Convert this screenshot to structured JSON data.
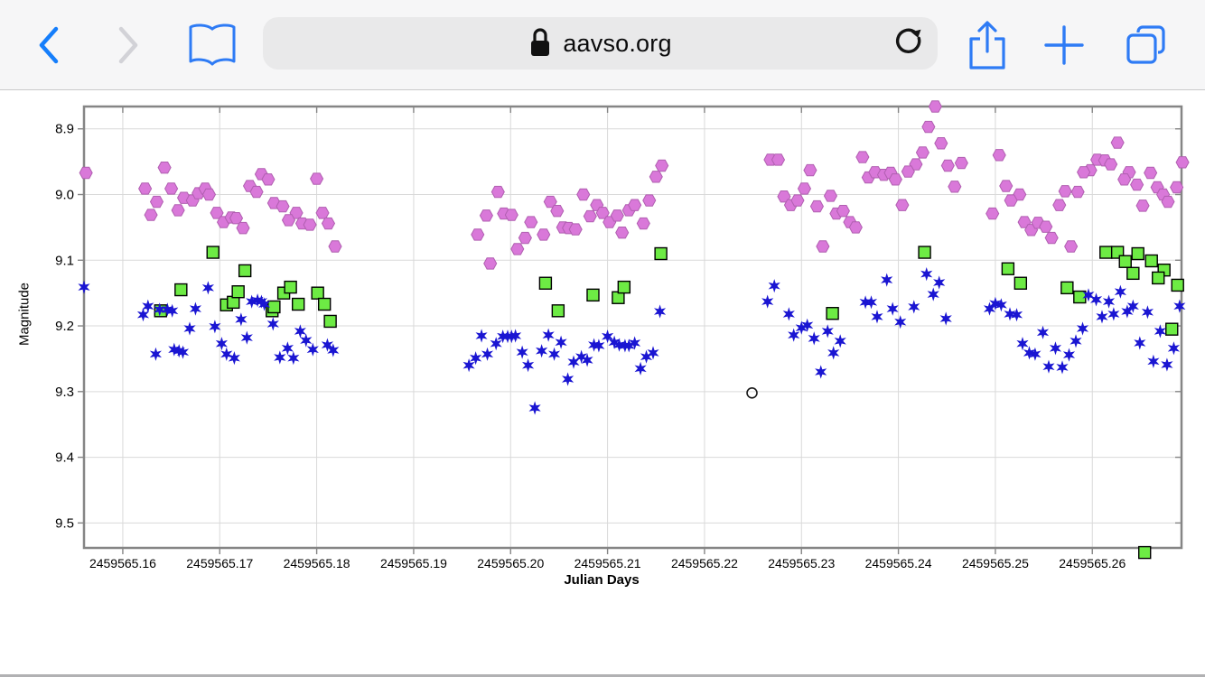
{
  "browser": {
    "url_text": "aavso.org",
    "accent_color": "#157efb",
    "icons": [
      "back",
      "forward",
      "bookmarks",
      "lock",
      "reload",
      "share",
      "new-tab",
      "tabs"
    ]
  },
  "chart_data": {
    "type": "scatter",
    "title": "",
    "xlabel": "Julian Days",
    "ylabel": "Magnitude",
    "x_unit": "JD - 2459565",
    "grid": true,
    "legend": "none",
    "y_inverted": true,
    "xlim": [
      0.156,
      0.2692
    ],
    "ylim": [
      8.866,
      9.538
    ],
    "x_ticks": [
      0.16,
      0.17,
      0.18,
      0.19,
      0.2,
      0.21,
      0.22,
      0.23,
      0.24,
      0.25,
      0.26
    ],
    "x_tick_labels": [
      "2459565.16",
      "2459565.17",
      "2459565.18",
      "2459565.19",
      "2459565.20",
      "2459565.21",
      "2459565.22",
      "2459565.23",
      "2459565.24",
      "2459565.25",
      "2459565.26"
    ],
    "y_ticks": [
      8.9,
      9.0,
      9.1,
      9.2,
      9.3,
      9.4,
      9.5
    ],
    "y_tick_labels": [
      "8.9",
      "9.0",
      "9.1",
      "9.2",
      "9.3",
      "9.4",
      "9.5"
    ],
    "colors": {
      "grid": "#d9d9d9",
      "frame": "#858585",
      "violet": "#d978d9",
      "green": "#6deb44",
      "blue": "#1a15d2"
    },
    "series": [
      {
        "id": "violet-hexagons",
        "marker": "hexagon",
        "fill": "#d978d9",
        "edge": "#b05fb0",
        "points": [
          [
            0.1562,
            8.967
          ],
          [
            0.1643,
            8.959
          ],
          [
            0.1623,
            8.991
          ],
          [
            0.165,
            8.991
          ],
          [
            0.1635,
            9.011
          ],
          [
            0.1629,
            9.031
          ],
          [
            0.1657,
            9.024
          ],
          [
            0.1663,
            9.005
          ],
          [
            0.1672,
            9.009
          ],
          [
            0.1678,
            8.998
          ],
          [
            0.1685,
            8.991
          ],
          [
            0.1689,
            9.0
          ],
          [
            0.1697,
            9.028
          ],
          [
            0.1704,
            9.042
          ],
          [
            0.1712,
            9.035
          ],
          [
            0.1717,
            9.036
          ],
          [
            0.1724,
            9.051
          ],
          [
            0.1731,
            8.987
          ],
          [
            0.1738,
            8.996
          ],
          [
            0.1743,
            8.969
          ],
          [
            0.175,
            8.977
          ],
          [
            0.1756,
            9.013
          ],
          [
            0.1765,
            9.018
          ],
          [
            0.18,
            8.976
          ],
          [
            0.1779,
            9.028
          ],
          [
            0.1771,
            9.039
          ],
          [
            0.1785,
            9.044
          ],
          [
            0.1793,
            9.046
          ],
          [
            0.1806,
            9.028
          ],
          [
            0.1812,
            9.044
          ],
          [
            0.1819,
            9.079
          ],
          [
            0.1966,
            9.061
          ],
          [
            0.1987,
            8.996
          ],
          [
            0.1975,
            9.032
          ],
          [
            0.1993,
            9.029
          ],
          [
            0.2001,
            9.031
          ],
          [
            0.1979,
            9.105
          ],
          [
            0.2007,
            9.083
          ],
          [
            0.2015,
            9.066
          ],
          [
            0.2021,
            9.042
          ],
          [
            0.2034,
            9.061
          ],
          [
            0.2041,
            9.011
          ],
          [
            0.2048,
            9.025
          ],
          [
            0.2054,
            9.05
          ],
          [
            0.206,
            9.051
          ],
          [
            0.2067,
            9.053
          ],
          [
            0.2075,
            9.0
          ],
          [
            0.2082,
            9.033
          ],
          [
            0.2089,
            9.016
          ],
          [
            0.2095,
            9.028
          ],
          [
            0.2102,
            9.042
          ],
          [
            0.211,
            9.032
          ],
          [
            0.2115,
            9.058
          ],
          [
            0.2122,
            9.024
          ],
          [
            0.2128,
            9.016
          ],
          [
            0.2137,
            9.044
          ],
          [
            0.2143,
            9.009
          ],
          [
            0.215,
            8.973
          ],
          [
            0.2156,
            8.956
          ],
          [
            0.2268,
            8.947
          ],
          [
            0.2276,
            8.947
          ],
          [
            0.2309,
            8.963
          ],
          [
            0.2363,
            8.943
          ],
          [
            0.2369,
            8.974
          ],
          [
            0.2376,
            8.966
          ],
          [
            0.2303,
            8.991
          ],
          [
            0.2282,
            9.003
          ],
          [
            0.2289,
            9.016
          ],
          [
            0.2296,
            9.009
          ],
          [
            0.2316,
            9.018
          ],
          [
            0.233,
            9.002
          ],
          [
            0.2336,
            9.029
          ],
          [
            0.2343,
            9.025
          ],
          [
            0.235,
            9.042
          ],
          [
            0.2356,
            9.05
          ],
          [
            0.2322,
            9.079
          ],
          [
            0.2438,
            8.866
          ],
          [
            0.2431,
            8.897
          ],
          [
            0.2444,
            8.922
          ],
          [
            0.2425,
            8.936
          ],
          [
            0.2451,
            8.956
          ],
          [
            0.2465,
            8.952
          ],
          [
            0.2418,
            8.954
          ],
          [
            0.241,
            8.965
          ],
          [
            0.2385,
            8.97
          ],
          [
            0.2392,
            8.967
          ],
          [
            0.2397,
            8.977
          ],
          [
            0.2458,
            8.988
          ],
          [
            0.2404,
            9.016
          ],
          [
            0.2504,
            8.94
          ],
          [
            0.2511,
            8.987
          ],
          [
            0.2525,
            9.0
          ],
          [
            0.2516,
            9.009
          ],
          [
            0.2497,
            9.029
          ],
          [
            0.253,
            9.042
          ],
          [
            0.2537,
            9.054
          ],
          [
            0.2544,
            9.043
          ],
          [
            0.2552,
            9.049
          ],
          [
            0.2558,
            9.066
          ],
          [
            0.2626,
            8.921
          ],
          [
            0.2605,
            8.947
          ],
          [
            0.2613,
            8.948
          ],
          [
            0.2619,
            8.954
          ],
          [
            0.2598,
            8.963
          ],
          [
            0.2591,
            8.966
          ],
          [
            0.2638,
            8.966
          ],
          [
            0.266,
            8.967
          ],
          [
            0.2633,
            8.977
          ],
          [
            0.2646,
            8.985
          ],
          [
            0.2572,
            8.995
          ],
          [
            0.2585,
            8.996
          ],
          [
            0.2667,
            8.989
          ],
          [
            0.2693,
            8.951
          ],
          [
            0.2687,
            8.989
          ],
          [
            0.2673,
            9.0
          ],
          [
            0.2566,
            9.016
          ],
          [
            0.2678,
            9.011
          ],
          [
            0.2652,
            9.017
          ],
          [
            0.2578,
            9.079
          ]
        ]
      },
      {
        "id": "green-squares",
        "marker": "square",
        "fill": "#6deb44",
        "edge": "#000000",
        "points": [
          [
            0.1693,
            9.088
          ],
          [
            0.1726,
            9.116
          ],
          [
            0.166,
            9.145
          ],
          [
            0.1639,
            9.177
          ],
          [
            0.1707,
            9.168
          ],
          [
            0.1714,
            9.164
          ],
          [
            0.1719,
            9.148
          ],
          [
            0.1754,
            9.177
          ],
          [
            0.1766,
            9.15
          ],
          [
            0.1773,
            9.141
          ],
          [
            0.1756,
            9.171
          ],
          [
            0.1781,
            9.167
          ],
          [
            0.1801,
            9.15
          ],
          [
            0.1808,
            9.167
          ],
          [
            0.1814,
            9.193
          ],
          [
            0.2036,
            9.135
          ],
          [
            0.2049,
            9.177
          ],
          [
            0.2085,
            9.153
          ],
          [
            0.2111,
            9.157
          ],
          [
            0.2117,
            9.141
          ],
          [
            0.2155,
            9.09
          ],
          [
            0.2332,
            9.181
          ],
          [
            0.2427,
            9.088
          ],
          [
            0.2513,
            9.113
          ],
          [
            0.2526,
            9.135
          ],
          [
            0.2614,
            9.088
          ],
          [
            0.2626,
            9.088
          ],
          [
            0.2647,
            9.09
          ],
          [
            0.2634,
            9.102
          ],
          [
            0.2661,
            9.101
          ],
          [
            0.2642,
            9.12
          ],
          [
            0.2674,
            9.115
          ],
          [
            0.2668,
            9.127
          ],
          [
            0.2688,
            9.138
          ],
          [
            0.2574,
            9.142
          ],
          [
            0.2587,
            9.156
          ],
          [
            0.2682,
            9.205
          ],
          [
            0.2654,
            9.545
          ]
        ]
      },
      {
        "id": "blue-stars",
        "marker": "star6",
        "fill": "#1a15d2",
        "edge": "none",
        "points": [
          [
            0.156,
            9.141
          ],
          [
            0.1626,
            9.17
          ],
          [
            0.1621,
            9.183
          ],
          [
            0.1638,
            9.175
          ],
          [
            0.1646,
            9.175
          ],
          [
            0.1651,
            9.177
          ],
          [
            0.1675,
            9.174
          ],
          [
            0.1688,
            9.142
          ],
          [
            0.1669,
            9.204
          ],
          [
            0.1695,
            9.201
          ],
          [
            0.1702,
            9.227
          ],
          [
            0.1707,
            9.243
          ],
          [
            0.1715,
            9.249
          ],
          [
            0.1722,
            9.19
          ],
          [
            0.1728,
            9.218
          ],
          [
            0.1733,
            9.163
          ],
          [
            0.1739,
            9.161
          ],
          [
            0.1743,
            9.163
          ],
          [
            0.1746,
            9.167
          ],
          [
            0.1755,
            9.197
          ],
          [
            0.1634,
            9.243
          ],
          [
            0.1653,
            9.236
          ],
          [
            0.1658,
            9.238
          ],
          [
            0.1662,
            9.24
          ],
          [
            0.1762,
            9.248
          ],
          [
            0.1783,
            9.208
          ],
          [
            0.1789,
            9.222
          ],
          [
            0.177,
            9.234
          ],
          [
            0.1796,
            9.236
          ],
          [
            0.1776,
            9.249
          ],
          [
            0.1811,
            9.229
          ],
          [
            0.1817,
            9.237
          ],
          [
            0.1957,
            9.26
          ],
          [
            0.1964,
            9.249
          ],
          [
            0.197,
            9.215
          ],
          [
            0.1976,
            9.243
          ],
          [
            0.1985,
            9.227
          ],
          [
            0.1992,
            9.216
          ],
          [
            0.1997,
            9.216
          ],
          [
            0.2001,
            9.216
          ],
          [
            0.2005,
            9.215
          ],
          [
            0.2012,
            9.24
          ],
          [
            0.2018,
            9.26
          ],
          [
            0.2025,
            9.325
          ],
          [
            0.2032,
            9.238
          ],
          [
            0.2039,
            9.214
          ],
          [
            0.2045,
            9.243
          ],
          [
            0.2052,
            9.225
          ],
          [
            0.2059,
            9.281
          ],
          [
            0.2065,
            9.255
          ],
          [
            0.2073,
            9.247
          ],
          [
            0.2079,
            9.252
          ],
          [
            0.2086,
            9.229
          ],
          [
            0.2091,
            9.23
          ],
          [
            0.21,
            9.216
          ],
          [
            0.2107,
            9.225
          ],
          [
            0.2112,
            9.229
          ],
          [
            0.2118,
            9.23
          ],
          [
            0.2122,
            9.23
          ],
          [
            0.2128,
            9.226
          ],
          [
            0.2134,
            9.265
          ],
          [
            0.214,
            9.247
          ],
          [
            0.2147,
            9.241
          ],
          [
            0.2154,
            9.178
          ],
          [
            0.2272,
            9.139
          ],
          [
            0.2265,
            9.163
          ],
          [
            0.2287,
            9.182
          ],
          [
            0.2292,
            9.214
          ],
          [
            0.23,
            9.203
          ],
          [
            0.2306,
            9.199
          ],
          [
            0.2313,
            9.219
          ],
          [
            0.2327,
            9.208
          ],
          [
            0.234,
            9.223
          ],
          [
            0.2333,
            9.241
          ],
          [
            0.232,
            9.27
          ],
          [
            0.2366,
            9.164
          ],
          [
            0.2372,
            9.164
          ],
          [
            0.2388,
            9.13
          ],
          [
            0.2429,
            9.121
          ],
          [
            0.2442,
            9.134
          ],
          [
            0.2436,
            9.152
          ],
          [
            0.2394,
            9.174
          ],
          [
            0.2416,
            9.171
          ],
          [
            0.2378,
            9.186
          ],
          [
            0.2402,
            9.194
          ],
          [
            0.2449,
            9.189
          ],
          [
            0.2494,
            9.174
          ],
          [
            0.25,
            9.166
          ],
          [
            0.2506,
            9.168
          ],
          [
            0.2515,
            9.182
          ],
          [
            0.2522,
            9.183
          ],
          [
            0.2549,
            9.21
          ],
          [
            0.2528,
            9.227
          ],
          [
            0.2535,
            9.241
          ],
          [
            0.2541,
            9.243
          ],
          [
            0.2555,
            9.262
          ],
          [
            0.2562,
            9.234
          ],
          [
            0.2596,
            9.153
          ],
          [
            0.2604,
            9.16
          ],
          [
            0.2617,
            9.163
          ],
          [
            0.2629,
            9.148
          ],
          [
            0.2636,
            9.178
          ],
          [
            0.2642,
            9.17
          ],
          [
            0.261,
            9.186
          ],
          [
            0.2622,
            9.182
          ],
          [
            0.2657,
            9.179
          ],
          [
            0.269,
            9.17
          ],
          [
            0.259,
            9.204
          ],
          [
            0.267,
            9.208
          ],
          [
            0.2583,
            9.223
          ],
          [
            0.2649,
            9.226
          ],
          [
            0.2576,
            9.244
          ],
          [
            0.2684,
            9.234
          ],
          [
            0.2663,
            9.254
          ],
          [
            0.2677,
            9.259
          ],
          [
            0.2569,
            9.263
          ]
        ]
      },
      {
        "id": "open-circle",
        "marker": "open-circle",
        "fill": "none",
        "edge": "#1a1a1a",
        "points": [
          [
            0.2249,
            9.302
          ]
        ]
      }
    ]
  }
}
